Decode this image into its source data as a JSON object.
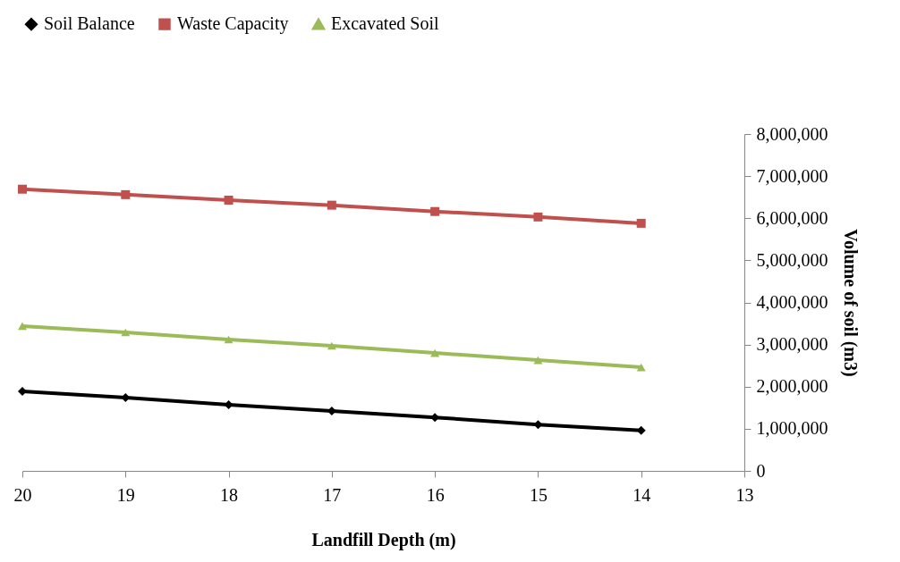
{
  "chart_data": {
    "type": "line",
    "xlabel": "Landfill Depth (m)",
    "y2label": "Volume of soil (m3)",
    "x": [
      20,
      19,
      18,
      17,
      16,
      15,
      14
    ],
    "series": [
      {
        "name": "Soil Balance",
        "color": "#000000",
        "marker": "diamond",
        "axis": "y2",
        "values": [
          1890000,
          1740000,
          1570000,
          1420000,
          1270000,
          1100000,
          960000
        ]
      },
      {
        "name": "Waste Capacity",
        "color": "#c0504d",
        "marker": "square",
        "axis": "y2",
        "values": [
          6690000,
          6560000,
          6430000,
          6310000,
          6160000,
          6030000,
          5880000
        ]
      },
      {
        "name": "Excavated Soil",
        "color": "#9bbb59",
        "marker": "triangle",
        "axis": "y2",
        "values": [
          3440000,
          3290000,
          3120000,
          2970000,
          2800000,
          2630000,
          2460000
        ]
      }
    ],
    "xlim": [
      20,
      13
    ],
    "xticks": [
      20,
      19,
      18,
      17,
      16,
      15,
      14,
      13
    ],
    "y2lim": [
      0,
      8000000
    ],
    "y2ticks": [
      0,
      {
        "value": 1000000,
        "label": "1,000,000"
      },
      {
        "value": 2000000,
        "label": "2,000,000"
      },
      {
        "value": 3000000,
        "label": "3,000,000"
      },
      {
        "value": 4000000,
        "label": "4,000,000"
      },
      {
        "value": 5000000,
        "label": "5,000,000"
      },
      {
        "value": 6000000,
        "label": "6,000,000"
      },
      {
        "value": 7000000,
        "label": "7,000,000"
      },
      {
        "value": 8000000,
        "label": "8,000,000"
      }
    ],
    "grid": false,
    "legend": "top",
    "line_style": "solid"
  }
}
